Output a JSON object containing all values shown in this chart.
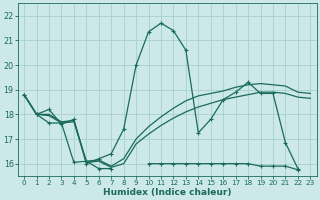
{
  "xlabel": "Humidex (Indice chaleur)",
  "bg_color": "#cce8e8",
  "grid_color": "#a8d0d0",
  "line_color": "#1a6b5a",
  "xlim": [
    -0.5,
    23.5
  ],
  "ylim": [
    15.5,
    22.5
  ],
  "yticks": [
    16,
    17,
    18,
    19,
    20,
    21,
    22
  ],
  "xticks": [
    0,
    1,
    2,
    3,
    4,
    5,
    6,
    7,
    8,
    9,
    10,
    11,
    12,
    13,
    14,
    15,
    16,
    17,
    18,
    19,
    20,
    21,
    22,
    23
  ],
  "line_main_x": [
    0,
    1,
    2,
    3,
    4,
    5,
    6,
    7,
    8,
    9,
    10,
    11,
    12,
    13,
    14,
    15,
    16,
    17,
    18,
    19,
    20,
    21,
    22,
    23
  ],
  "line_main_y": [
    18.8,
    18.0,
    18.2,
    17.6,
    17.8,
    16.0,
    16.2,
    16.4,
    17.4,
    20.0,
    21.35,
    21.7,
    21.4,
    20.6,
    17.25,
    17.8,
    18.6,
    18.9,
    19.3,
    18.85,
    18.85,
    16.85,
    15.8,
    null
  ],
  "line_min_x": [
    0,
    1,
    2,
    3,
    4,
    5,
    6,
    7,
    8,
    9,
    10,
    11,
    12,
    13,
    14,
    15,
    16,
    17,
    18,
    19,
    20,
    21,
    22,
    23
  ],
  "line_min_y": [
    18.8,
    18.0,
    17.65,
    17.65,
    16.05,
    16.1,
    15.8,
    15.8,
    null,
    null,
    16.0,
    16.0,
    16.0,
    16.0,
    16.0,
    16.0,
    16.0,
    16.0,
    16.0,
    15.9,
    15.9,
    15.9,
    15.75,
    null
  ],
  "line_avg1_x": [
    0,
    1,
    2,
    3,
    4,
    5,
    6,
    7,
    8,
    9,
    10,
    11,
    12,
    13,
    14,
    15,
    16,
    17,
    18,
    19,
    20,
    21,
    22,
    23
  ],
  "line_avg1_y": [
    18.8,
    18.0,
    18.0,
    17.7,
    17.75,
    16.1,
    16.15,
    15.9,
    16.2,
    17.0,
    17.5,
    17.9,
    18.25,
    18.55,
    18.75,
    18.85,
    18.95,
    19.1,
    19.2,
    19.25,
    19.2,
    19.15,
    18.9,
    18.85
  ],
  "line_avg2_x": [
    0,
    1,
    2,
    3,
    4,
    5,
    6,
    7,
    8,
    9,
    10,
    11,
    12,
    13,
    14,
    15,
    16,
    17,
    18,
    19,
    20,
    21,
    22,
    23
  ],
  "line_avg2_y": [
    18.8,
    18.0,
    17.95,
    17.65,
    17.7,
    16.05,
    16.1,
    15.85,
    16.0,
    16.8,
    17.2,
    17.55,
    17.85,
    18.1,
    18.3,
    18.45,
    18.6,
    18.7,
    18.8,
    18.9,
    18.9,
    18.85,
    18.7,
    18.65
  ]
}
